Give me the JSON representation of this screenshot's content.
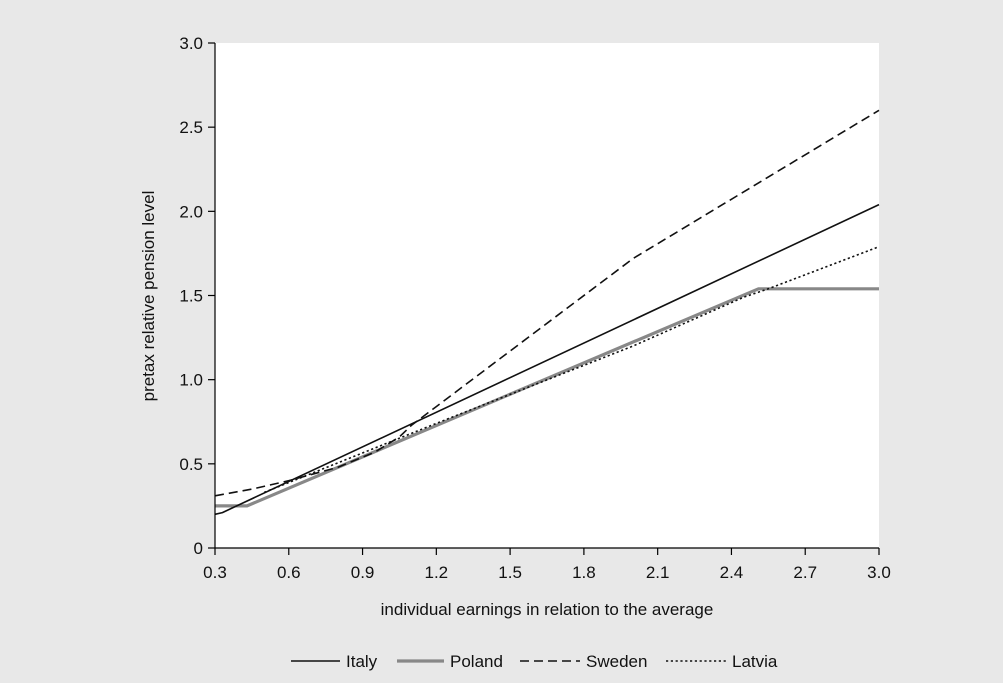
{
  "colors": {
    "background": "#e8e8e8",
    "plot_area": "#ffffff",
    "axis": "#000000"
  },
  "chart_data": {
    "type": "line",
    "xlabel": "individual earnings in relation to the average",
    "ylabel": "pretax relative pension level",
    "xlim": [
      0.3,
      3.0
    ],
    "ylim": [
      0,
      3.0
    ],
    "x_ticks": [
      0.3,
      0.6,
      0.9,
      1.2,
      1.5,
      1.8,
      2.1,
      2.4,
      2.7,
      3.0
    ],
    "x_tick_labels": [
      "0.3",
      "0.6",
      "0.9",
      "1.2",
      "1.5",
      "1.8",
      "2.1",
      "2.4",
      "2.7",
      "3.0"
    ],
    "y_ticks": [
      0,
      0.5,
      1.0,
      1.5,
      2.0,
      2.5,
      3.0
    ],
    "y_tick_labels": [
      "0",
      "0.5",
      "1.0",
      "1.5",
      "2.0",
      "2.5",
      "3.0"
    ],
    "grid": false,
    "legend_position": "bottom",
    "series": [
      {
        "name": "Italy",
        "color": "#111111",
        "style": "solid",
        "width": 1.6,
        "points": [
          [
            0.3,
            0.2
          ],
          [
            0.33,
            0.21
          ],
          [
            3.0,
            2.04
          ]
        ]
      },
      {
        "name": "Poland",
        "color": "#888888",
        "style": "solid",
        "width": 3.2,
        "points": [
          [
            0.3,
            0.25
          ],
          [
            0.43,
            0.25
          ],
          [
            2.51,
            1.54
          ],
          [
            3.0,
            1.54
          ]
        ]
      },
      {
        "name": "Sweden",
        "color": "#111111",
        "style": "dashed",
        "width": 1.6,
        "points": [
          [
            0.3,
            0.31
          ],
          [
            0.45,
            0.35
          ],
          [
            0.6,
            0.4
          ],
          [
            0.8,
            0.48
          ],
          [
            0.95,
            0.57
          ],
          [
            1.05,
            0.66
          ],
          [
            1.1,
            0.73
          ],
          [
            1.2,
            0.84
          ],
          [
            2.0,
            1.72
          ],
          [
            3.0,
            2.6
          ]
        ]
      },
      {
        "name": "Latvia",
        "color": "#111111",
        "style": "dotted",
        "width": 1.6,
        "points": [
          [
            0.5,
            0.33
          ],
          [
            1.2,
            0.74
          ],
          [
            2.0,
            1.2
          ],
          [
            2.45,
            1.49
          ],
          [
            2.55,
            1.54
          ],
          [
            3.0,
            1.79
          ]
        ]
      }
    ]
  }
}
